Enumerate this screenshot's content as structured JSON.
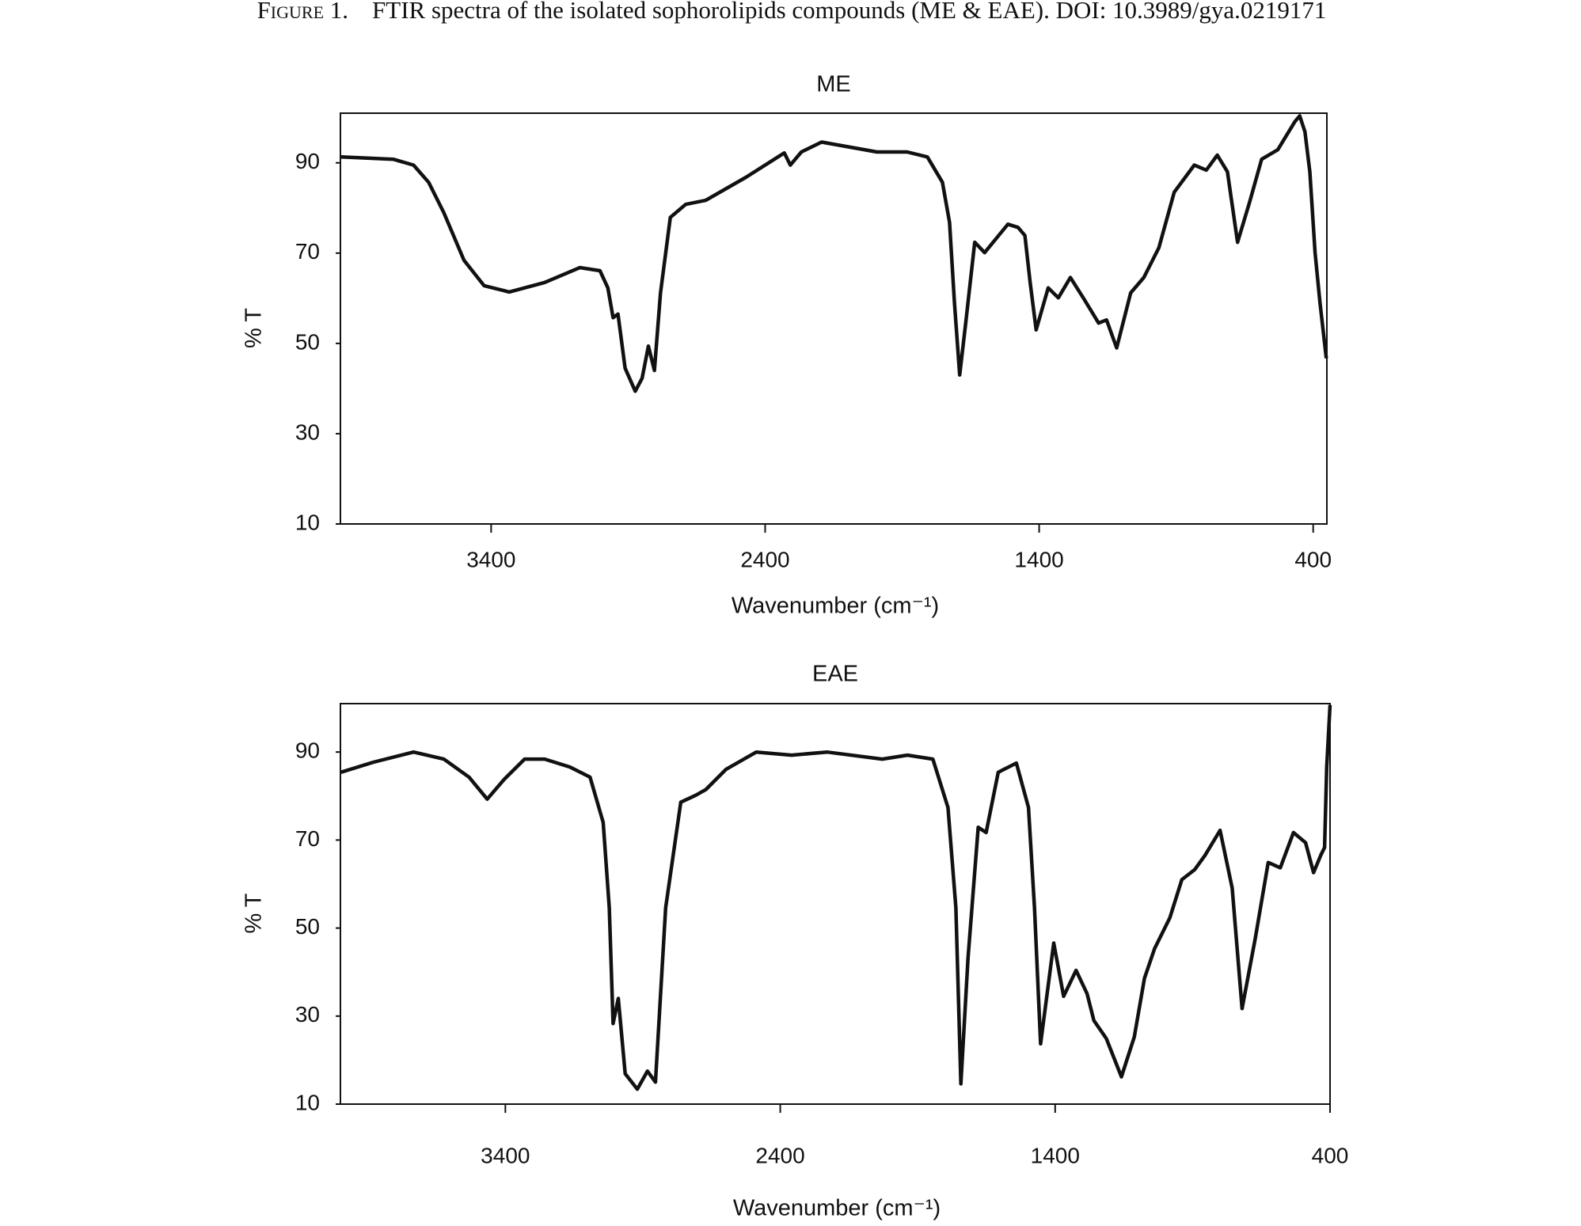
{
  "figure_label": "Figure 1.",
  "figure_caption": "FTIR spectra of the isolated sophorolipids compounds (ME & EAE). DOI: 10.3989/gya.0219171",
  "chart_data": [
    {
      "type": "line",
      "title": "ME",
      "xlabel": "Wavenumber (cm⁻¹)",
      "ylabel": "% T",
      "color": "#111111",
      "xlim": [
        3950,
        350
      ],
      "ylim": [
        10,
        101
      ],
      "xticks": [
        3400,
        2400,
        1400,
        400
      ],
      "yticks": [
        10,
        30,
        50,
        70,
        90
      ],
      "x": [
        3948,
        3757,
        3683,
        3628,
        3573,
        3499,
        3426,
        3334,
        3205,
        3076,
        3003,
        2974,
        2955,
        2937,
        2911,
        2874,
        2849,
        2826,
        2804,
        2782,
        2746,
        2690,
        2617,
        2470,
        2330,
        2308,
        2268,
        2194,
        1992,
        1882,
        1808,
        1753,
        1727,
        1709,
        1690,
        1668,
        1635,
        1599,
        1514,
        1477,
        1452,
        1433,
        1411,
        1367,
        1330,
        1286,
        1239,
        1183,
        1154,
        1117,
        1066,
        1018,
        963,
        907,
        834,
        790,
        750,
        713,
        676,
        632,
        588,
        529,
        467,
        449,
        430,
        412,
        393,
        375,
        352
      ],
      "values": [
        91.3,
        90.8,
        89.5,
        85.7,
        79,
        68.4,
        62.8,
        61.4,
        63.5,
        66.8,
        66.1,
        62.3,
        55.7,
        56.5,
        44.5,
        39.4,
        42.3,
        49.4,
        44,
        61.2,
        77.9,
        80.8,
        81.7,
        86.8,
        92.2,
        89.5,
        92.4,
        94.6,
        92.4,
        92.4,
        91.3,
        85.7,
        76.8,
        59,
        43,
        54.5,
        72.4,
        70.1,
        76.4,
        75.7,
        73.9,
        63.5,
        53,
        62.3,
        60.1,
        64.6,
        60.1,
        54.5,
        55.2,
        49,
        61.2,
        64.6,
        71.2,
        83.5,
        89.5,
        88.4,
        91.7,
        88,
        72.4,
        81.3,
        90.8,
        92.9,
        99.1,
        100.4,
        96.9,
        88,
        70.1,
        59,
        46.7
      ]
    },
    {
      "type": "line",
      "title": "EAE",
      "xlabel": "Wavenumber (cm⁻¹)",
      "ylabel": "% T",
      "color": "#111111",
      "xlim": [
        4000,
        400
      ],
      "ylim": [
        10,
        101
      ],
      "xticks": [
        3400,
        2400,
        1400,
        400
      ],
      "yticks": [
        10,
        30,
        50,
        70,
        90
      ],
      "x": [
        3998,
        3880,
        3734,
        3624,
        3532,
        3466,
        3404,
        3330,
        3257,
        3165,
        3092,
        3044,
        3022,
        3008,
        2989,
        2964,
        2920,
        2883,
        2854,
        2817,
        2762,
        2707,
        2670,
        2597,
        2487,
        2359,
        2230,
        2029,
        1937,
        1845,
        1790,
        1761,
        1743,
        1717,
        1680,
        1651,
        1607,
        1541,
        1497,
        1475,
        1453,
        1405,
        1369,
        1324,
        1284,
        1259,
        1214,
        1159,
        1112,
        1075,
        1038,
        983,
        939,
        892,
        855,
        800,
        756,
        720,
        672,
        625,
        581,
        533,
        489,
        460,
        434,
        420,
        412,
        400
      ],
      "values": [
        85.4,
        87.7,
        90,
        88.4,
        84.3,
        79.3,
        83.8,
        88.4,
        88.4,
        86.6,
        84.3,
        74,
        54.6,
        28.3,
        34,
        16.9,
        13.4,
        17.5,
        15,
        54.6,
        78.6,
        80.2,
        81.5,
        86.1,
        90,
        89.3,
        90,
        88.4,
        89.3,
        88.4,
        77.4,
        54.6,
        14.6,
        43.1,
        72.9,
        71.7,
        85.4,
        87.5,
        77.4,
        54.6,
        23.7,
        46.6,
        34.5,
        40.4,
        35.1,
        29,
        24.9,
        16.2,
        25.3,
        38.6,
        45.4,
        52.3,
        61,
        63.3,
        66.5,
        72.2,
        59.1,
        31.7,
        47.7,
        64.9,
        63.7,
        71.7,
        69.4,
        62.6,
        66.5,
        68.3,
        86.6,
        100.7
      ]
    }
  ]
}
